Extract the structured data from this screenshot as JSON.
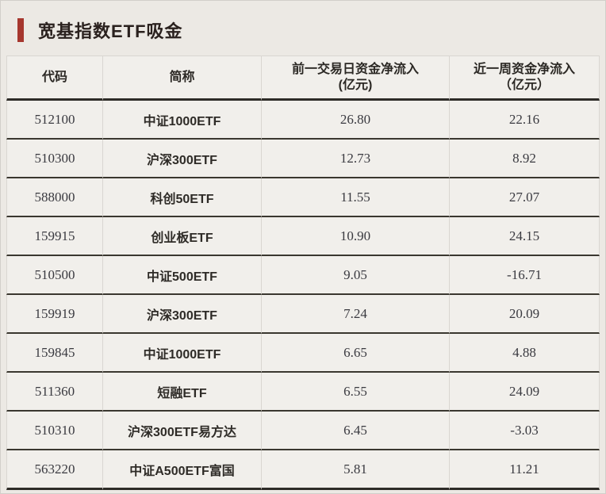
{
  "header": {
    "title": "宽基指数ETF吸金",
    "accent_color": "#a6372e"
  },
  "chart_data": {
    "type": "table",
    "title": "宽基指数ETF吸金",
    "columns": [
      {
        "label": "代码",
        "sub": ""
      },
      {
        "label": "简称",
        "sub": ""
      },
      {
        "label": "前一交易日资金净流入",
        "sub": "(亿元)"
      },
      {
        "label": "近一周资金净流入",
        "sub": "（亿元）"
      }
    ],
    "rows": [
      {
        "code": "512100",
        "name": "中证1000ETF",
        "prev_day_net_inflow": "26.80",
        "week_net_inflow": "22.16"
      },
      {
        "code": "510300",
        "name": "沪深300ETF",
        "prev_day_net_inflow": "12.73",
        "week_net_inflow": "8.92"
      },
      {
        "code": "588000",
        "name": "科创50ETF",
        "prev_day_net_inflow": "11.55",
        "week_net_inflow": "27.07"
      },
      {
        "code": "159915",
        "name": "创业板ETF",
        "prev_day_net_inflow": "10.90",
        "week_net_inflow": "24.15"
      },
      {
        "code": "510500",
        "name": "中证500ETF",
        "prev_day_net_inflow": "9.05",
        "week_net_inflow": "-16.71"
      },
      {
        "code": "159919",
        "name": "沪深300ETF",
        "prev_day_net_inflow": "7.24",
        "week_net_inflow": "20.09"
      },
      {
        "code": "159845",
        "name": "中证1000ETF",
        "prev_day_net_inflow": "6.65",
        "week_net_inflow": "4.88"
      },
      {
        "code": "511360",
        "name": "短融ETF",
        "prev_day_net_inflow": "6.55",
        "week_net_inflow": "24.09"
      },
      {
        "code": "510310",
        "name": "沪深300ETF易方达",
        "prev_day_net_inflow": "6.45",
        "week_net_inflow": "-3.03"
      },
      {
        "code": "563220",
        "name": "中证A500ETF富国",
        "prev_day_net_inflow": "5.81",
        "week_net_inflow": "11.21"
      }
    ]
  }
}
